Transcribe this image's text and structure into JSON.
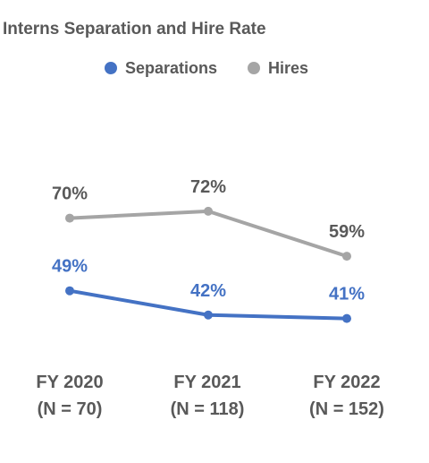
{
  "chart_data": {
    "type": "line",
    "title": "Interns Separation and Hire Rate",
    "categories": [
      "FY 2020",
      "FY 2021",
      "FY 2022"
    ],
    "category_sublabels": [
      "(N = 70)",
      "(N = 118)",
      "(N = 152)"
    ],
    "series": [
      {
        "name": "Separations",
        "values": [
          49,
          42,
          41
        ],
        "labels": [
          "49%",
          "42%",
          "41%"
        ],
        "color": "#4472C4"
      },
      {
        "name": "Hires",
        "values": [
          70,
          72,
          59
        ],
        "labels": [
          "70%",
          "72%",
          "59%"
        ],
        "color": "#A5A5A5"
      }
    ],
    "label_colors": {
      "Separations": "#4472C4",
      "Hires": "#595959"
    },
    "legend_position": "top",
    "grid": false,
    "xlabel": "",
    "ylabel": ""
  }
}
